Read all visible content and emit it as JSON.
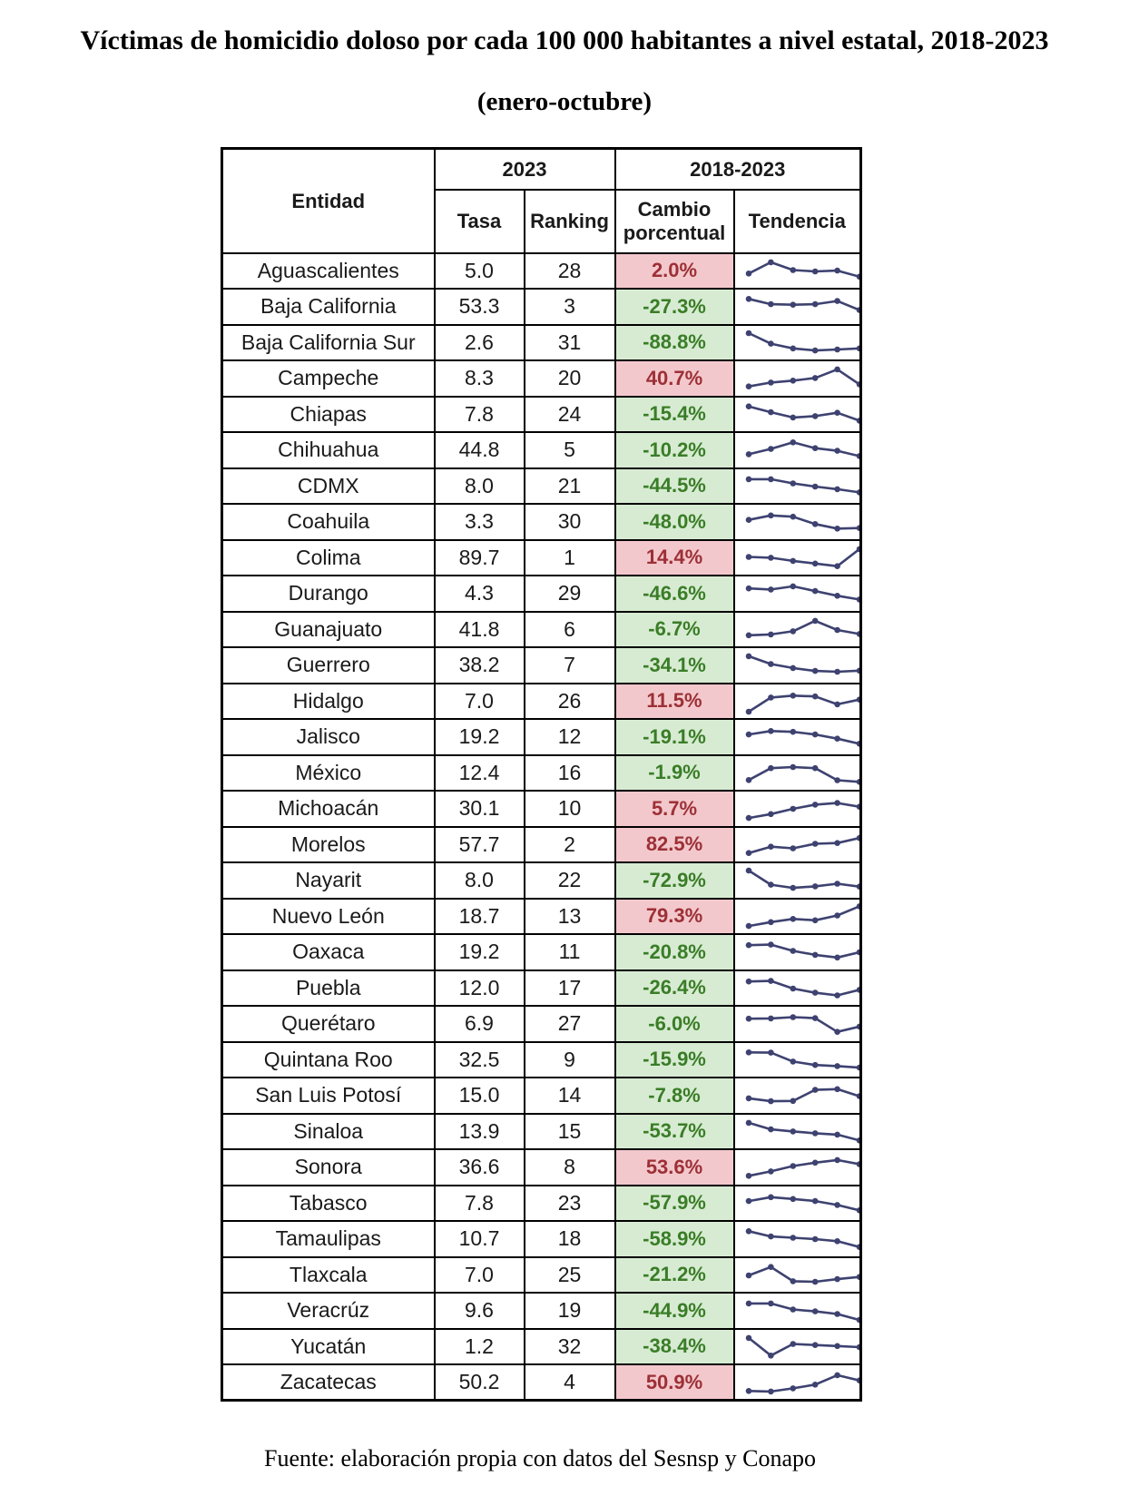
{
  "colors": {
    "positive_bg": "#f3c8cc",
    "positive_text": "#9c3036",
    "negative_bg": "#d7ebd2",
    "negative_text": "#3a7d27",
    "sparkline": "#3e4270",
    "border": "#000000"
  },
  "chart_data": {
    "type": "table",
    "title": "Víctimas de homicidio doloso por cada 100 000 habitantes a nivel estatal, 2018-2023",
    "subtitle": "(enero-octubre)",
    "source": "Fuente: elaboración propia con datos del Sesnsp y Conapo",
    "column_groups": [
      {
        "label": "2023",
        "span": 2
      },
      {
        "label": "2018-2023",
        "span": 2
      }
    ],
    "columns": [
      "Entidad",
      "Tasa",
      "Ranking",
      "Cambio porcentual",
      "Tendencia"
    ],
    "trend_years": "2018-2023",
    "rows": [
      {
        "entidad": "Aguascalientes",
        "tasa": "5.0",
        "ranking": "28",
        "cambio": "2.0%",
        "trend": [
          0.42,
          0.85,
          0.55,
          0.5,
          0.53,
          0.3
        ]
      },
      {
        "entidad": "Baja California",
        "tasa": "53.3",
        "ranking": "3",
        "cambio": "-27.3%",
        "trend": [
          0.8,
          0.6,
          0.58,
          0.6,
          0.72,
          0.38
        ]
      },
      {
        "entidad": "Baja California Sur",
        "tasa": "2.6",
        "ranking": "31",
        "cambio": "-88.8%",
        "trend": [
          0.88,
          0.48,
          0.3,
          0.22,
          0.26,
          0.3
        ]
      },
      {
        "entidad": "Campeche",
        "tasa": "8.3",
        "ranking": "20",
        "cambio": "40.7%",
        "trend": [
          0.2,
          0.35,
          0.42,
          0.52,
          0.85,
          0.28
        ]
      },
      {
        "entidad": "Chiapas",
        "tasa": "7.8",
        "ranking": "24",
        "cambio": "-15.4%",
        "trend": [
          0.82,
          0.6,
          0.4,
          0.45,
          0.58,
          0.28
        ]
      },
      {
        "entidad": "Chihuahua",
        "tasa": "44.8",
        "ranking": "5",
        "cambio": "-10.2%",
        "trend": [
          0.35,
          0.55,
          0.8,
          0.58,
          0.48,
          0.28
        ]
      },
      {
        "entidad": "CDMX",
        "tasa": "8.0",
        "ranking": "21",
        "cambio": "-44.5%",
        "trend": [
          0.78,
          0.78,
          0.62,
          0.5,
          0.4,
          0.28
        ]
      },
      {
        "entidad": "Coahuila",
        "tasa": "3.3",
        "ranking": "30",
        "cambio": "-48.0%",
        "trend": [
          0.58,
          0.75,
          0.7,
          0.42,
          0.25,
          0.27
        ]
      },
      {
        "entidad": "Colima",
        "tasa": "89.7",
        "ranking": "1",
        "cambio": "14.4%",
        "trend": [
          0.55,
          0.52,
          0.4,
          0.3,
          0.2,
          0.85
        ]
      },
      {
        "entidad": "Durango",
        "tasa": "4.3",
        "ranking": "29",
        "cambio": "-46.6%",
        "trend": [
          0.7,
          0.66,
          0.78,
          0.6,
          0.42,
          0.28
        ]
      },
      {
        "entidad": "Guanajuato",
        "tasa": "41.8",
        "ranking": "6",
        "cambio": "-6.7%",
        "trend": [
          0.3,
          0.33,
          0.45,
          0.85,
          0.5,
          0.35
        ]
      },
      {
        "entidad": "Guerrero",
        "tasa": "38.2",
        "ranking": "7",
        "cambio": "-34.1%",
        "trend": [
          0.85,
          0.55,
          0.4,
          0.29,
          0.26,
          0.3
        ]
      },
      {
        "entidad": "Hidalgo",
        "tasa": "7.0",
        "ranking": "26",
        "cambio": "11.5%",
        "trend": [
          0.12,
          0.66,
          0.73,
          0.7,
          0.4,
          0.58
        ]
      },
      {
        "entidad": "Jalisco",
        "tasa": "19.2",
        "ranking": "12",
        "cambio": "-19.1%",
        "trend": [
          0.6,
          0.73,
          0.7,
          0.6,
          0.44,
          0.25
        ]
      },
      {
        "entidad": "México",
        "tasa": "12.4",
        "ranking": "16",
        "cambio": "-1.9%",
        "trend": [
          0.25,
          0.7,
          0.74,
          0.7,
          0.24,
          0.18
        ]
      },
      {
        "entidad": "Michoacán",
        "tasa": "30.1",
        "ranking": "10",
        "cambio": "5.7%",
        "trend": [
          0.15,
          0.3,
          0.5,
          0.66,
          0.72,
          0.58
        ]
      },
      {
        "entidad": "Morelos",
        "tasa": "57.7",
        "ranking": "2",
        "cambio": "82.5%",
        "trend": [
          0.2,
          0.44,
          0.38,
          0.55,
          0.58,
          0.77
        ]
      },
      {
        "entidad": "Nayarit",
        "tasa": "8.0",
        "ranking": "22",
        "cambio": "-72.9%",
        "trend": [
          0.88,
          0.34,
          0.22,
          0.28,
          0.38,
          0.27
        ]
      },
      {
        "entidad": "Nuevo León",
        "tasa": "18.7",
        "ranking": "13",
        "cambio": "79.3%",
        "trend": [
          0.15,
          0.3,
          0.42,
          0.37,
          0.55,
          0.9
        ]
      },
      {
        "entidad": "Oaxaca",
        "tasa": "19.2",
        "ranking": "11",
        "cambio": "-20.8%",
        "trend": [
          0.77,
          0.79,
          0.55,
          0.4,
          0.3,
          0.5
        ]
      },
      {
        "entidad": "Puebla",
        "tasa": "12.0",
        "ranking": "17",
        "cambio": "-26.4%",
        "trend": [
          0.77,
          0.79,
          0.5,
          0.34,
          0.24,
          0.45
        ]
      },
      {
        "entidad": "Querétaro",
        "tasa": "6.9",
        "ranking": "27",
        "cambio": "-6.0%",
        "trend": [
          0.7,
          0.71,
          0.76,
          0.72,
          0.2,
          0.4
        ]
      },
      {
        "entidad": "Quintana Roo",
        "tasa": "32.5",
        "ranking": "9",
        "cambio": "-15.9%",
        "trend": [
          0.8,
          0.79,
          0.45,
          0.32,
          0.28,
          0.22
        ]
      },
      {
        "entidad": "San Luis Potosí",
        "tasa": "15.0",
        "ranking": "14",
        "cambio": "-7.8%",
        "trend": [
          0.4,
          0.29,
          0.3,
          0.72,
          0.75,
          0.48
        ]
      },
      {
        "entidad": "Sinaloa",
        "tasa": "13.9",
        "ranking": "15",
        "cambio": "-53.7%",
        "trend": [
          0.85,
          0.6,
          0.52,
          0.45,
          0.4,
          0.18
        ]
      },
      {
        "entidad": "Sonora",
        "tasa": "36.6",
        "ranking": "8",
        "cambio": "53.6%",
        "trend": [
          0.18,
          0.35,
          0.55,
          0.68,
          0.78,
          0.62
        ]
      },
      {
        "entidad": "Tabasco",
        "tasa": "7.8",
        "ranking": "23",
        "cambio": "-57.9%",
        "trend": [
          0.6,
          0.75,
          0.68,
          0.6,
          0.45,
          0.25
        ]
      },
      {
        "entidad": "Tamaulipas",
        "tasa": "10.7",
        "ranking": "18",
        "cambio": "-58.9%",
        "trend": [
          0.8,
          0.6,
          0.55,
          0.5,
          0.42,
          0.2
        ]
      },
      {
        "entidad": "Tlaxcala",
        "tasa": "7.0",
        "ranking": "25",
        "cambio": "-21.2%",
        "trend": [
          0.5,
          0.82,
          0.28,
          0.26,
          0.36,
          0.44
        ]
      },
      {
        "entidad": "Veracrúz",
        "tasa": "9.6",
        "ranking": "19",
        "cambio": "-44.9%",
        "trend": [
          0.78,
          0.78,
          0.55,
          0.48,
          0.38,
          0.15
        ]
      },
      {
        "entidad": "Yucatán",
        "tasa": "1.2",
        "ranking": "32",
        "cambio": "-38.4%",
        "trend": [
          0.85,
          0.18,
          0.62,
          0.58,
          0.54,
          0.5
        ]
      },
      {
        "entidad": "Zacatecas",
        "tasa": "50.2",
        "ranking": "4",
        "cambio": "50.9%",
        "trend": [
          0.18,
          0.16,
          0.28,
          0.42,
          0.78,
          0.58
        ]
      }
    ]
  }
}
